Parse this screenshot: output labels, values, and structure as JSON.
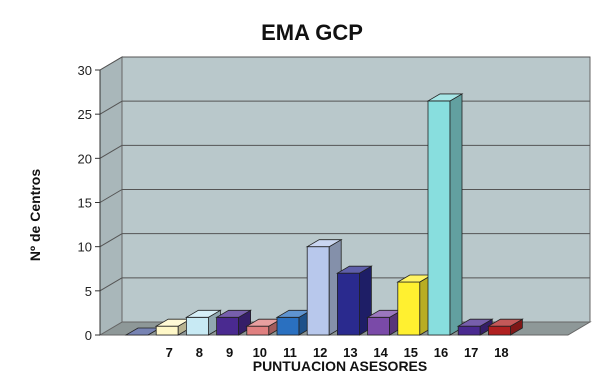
{
  "chart_data": {
    "type": "bar",
    "title": "EMA GCP",
    "xlabel": "PUNTUACION ASESORES",
    "ylabel": "Nº de Centros",
    "ylim": [
      0,
      30
    ],
    "yticks": [
      "0",
      "5",
      "10",
      "15",
      "20",
      "25",
      "30"
    ],
    "grid": true,
    "style": "3d",
    "categories": [
      "",
      "7",
      "8",
      "9",
      "10",
      "11",
      "12",
      "13",
      "14",
      "15",
      "16",
      "17",
      "18"
    ],
    "values": [
      0,
      1,
      2,
      2,
      1,
      2,
      10,
      7,
      2,
      6,
      26.5,
      1,
      1
    ],
    "colors": [
      "#4a5a9a",
      "#fff8c8",
      "#c8eaf4",
      "#4a2a90",
      "#e08080",
      "#2a70c0",
      "#b8c8ec",
      "#2a2a8e",
      "#7a4aa8",
      "#fff030",
      "#88dede",
      "#4a2a90",
      "#b02020"
    ]
  }
}
